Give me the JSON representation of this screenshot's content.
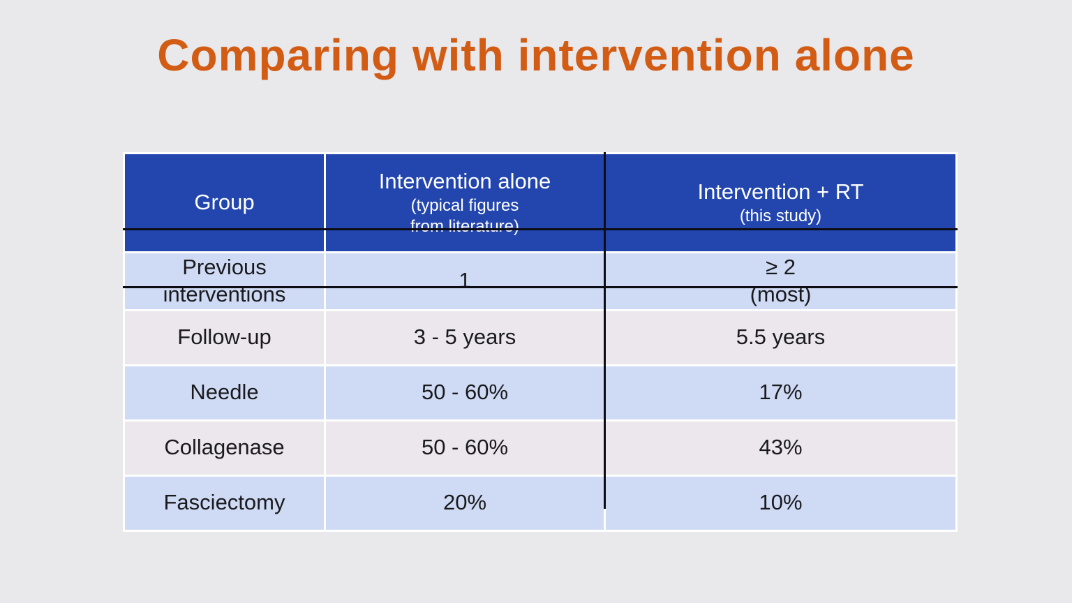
{
  "page": {
    "title": "Comparing with intervention alone"
  },
  "colors": {
    "page_background": "#E9E9EC",
    "title_orange": "#D35C15",
    "header_background": "#2245AE",
    "header_text": "#FFFFFF",
    "row_light_blue": "#CFDBF4",
    "row_lavender": "#EBE7ED",
    "divider_black": "#0C0C12",
    "cell_text": "#1A1A1E"
  },
  "table": {
    "columns": [
      {
        "label": "Group",
        "sub": ""
      },
      {
        "label": "Intervention alone",
        "sub": "(typical figures\nfrom literature)"
      },
      {
        "label": "Intervention + RT",
        "sub": "(this study)"
      }
    ],
    "rows": [
      {
        "group": "Previous interventions",
        "intervention_alone": "1",
        "intervention_rt": "≥ 2\n(most)"
      },
      {
        "group": "Follow-up",
        "intervention_alone": "3 - 5 years",
        "intervention_rt": "5.5 years"
      },
      {
        "group": "Needle",
        "intervention_alone": "50 - 60%",
        "intervention_rt": "17%"
      },
      {
        "group": "Collagenase",
        "intervention_alone": "50 - 60%",
        "intervention_rt": "43%"
      },
      {
        "group": "Fasciectomy",
        "intervention_alone": "20%",
        "intervention_rt": "10%"
      }
    ]
  }
}
